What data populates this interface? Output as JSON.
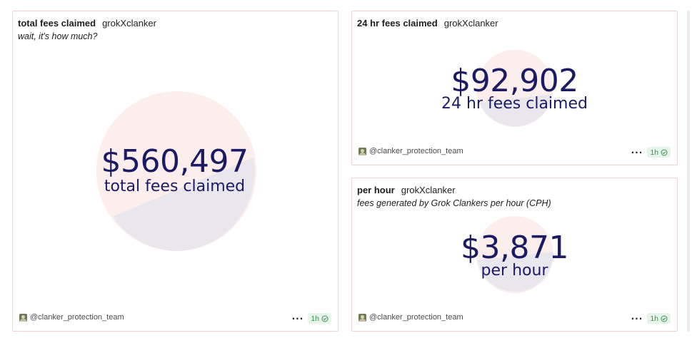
{
  "cards": {
    "total": {
      "title": "total fees claimed",
      "creator": "grokXclanker",
      "subtitle": "wait, it's how much?",
      "value": "$560,497",
      "label": "total fees claimed",
      "author": "@clanker_protection_team",
      "more": "···",
      "age": "1h"
    },
    "day": {
      "title": "24 hr fees claimed",
      "creator": "grokXclanker",
      "value": "$92,902",
      "label": "24 hr fees claimed",
      "author": "@clanker_protection_team",
      "more": "···",
      "age": "1h"
    },
    "hour": {
      "title": "per hour",
      "creator": "grokXclanker",
      "subtitle": "fees generated by Grok Clankers per hour (CPH)",
      "value": "$3,871",
      "label": "per hour",
      "author": "@clanker_protection_team",
      "more": "···",
      "age": "1h"
    }
  },
  "colors": {
    "number": "#1c1a63",
    "pie_top": "#fbeeec",
    "pie_bottom": "#e9e6ee",
    "badge_bg": "#e6f5ea",
    "badge_text": "#3d8d55",
    "card_border": "#ecd4d1"
  },
  "icons": {
    "avatar": "avatar",
    "more": "more-horizontal-icon",
    "status": "check-circle-icon"
  }
}
